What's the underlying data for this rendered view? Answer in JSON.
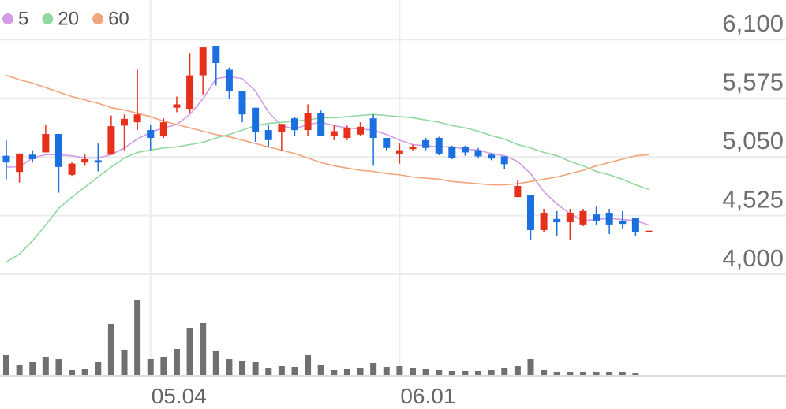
{
  "chart_data": {
    "type": "candlestick",
    "categories": [
      null,
      null,
      null,
      null,
      null,
      null,
      null,
      null,
      null,
      null,
      null,
      "05.04",
      null,
      null,
      null,
      null,
      null,
      null,
      null,
      null,
      null,
      null,
      null,
      null,
      null,
      null,
      null,
      null,
      null,
      null,
      "06.01",
      null,
      null,
      null,
      null,
      null,
      null,
      null,
      null,
      null,
      null,
      null,
      null,
      null,
      null,
      null,
      null,
      null,
      null,
      null
    ],
    "open": [
      5060,
      4915,
      5070,
      5090,
      5255,
      4890,
      5000,
      5020,
      5070,
      5330,
      5360,
      5290,
      5240,
      5490,
      5480,
      5780,
      6045,
      5830,
      5640,
      5490,
      5290,
      5270,
      5395,
      5290,
      5445,
      5235,
      5220,
      5250,
      5395,
      5220,
      5080,
      5120,
      5200,
      5220,
      5140,
      5140,
      5110,
      5070,
      5055,
      4690,
      4705,
      4395,
      4495,
      4465,
      4445,
      4535,
      4550,
      4480,
      4505,
      4385
    ],
    "high": [
      5200,
      5080,
      5110,
      5340,
      5255,
      5000,
      5070,
      5170,
      5420,
      5430,
      5830,
      5340,
      5395,
      5590,
      5980,
      6030,
      6045,
      5850,
      5640,
      5490,
      5340,
      5345,
      5410,
      5520,
      5465,
      5340,
      5330,
      5360,
      5430,
      5220,
      5170,
      5160,
      5220,
      5230,
      5150,
      5150,
      5130,
      5085,
      5055,
      4845,
      4705,
      4585,
      4565,
      4585,
      4585,
      4605,
      4585,
      4565,
      4505,
      4390
    ],
    "low": [
      4850,
      4820,
      5000,
      5090,
      4730,
      4880,
      4970,
      4920,
      5070,
      5110,
      5290,
      5110,
      5220,
      5450,
      5445,
      5610,
      5690,
      5570,
      5360,
      5185,
      5140,
      5100,
      5240,
      5240,
      5240,
      5200,
      5200,
      5240,
      4970,
      5110,
      4990,
      5100,
      5110,
      5065,
      5030,
      5060,
      5040,
      5020,
      4945,
      4690,
      4305,
      4375,
      4340,
      4305,
      4430,
      4445,
      4360,
      4410,
      4340,
      4385
    ],
    "close": [
      5000,
      5080,
      5030,
      5255,
      4960,
      4990,
      5030,
      5000,
      5325,
      5390,
      5430,
      5220,
      5360,
      5520,
      5780,
      6030,
      5890,
      5640,
      5430,
      5270,
      5200,
      5345,
      5290,
      5445,
      5240,
      5280,
      5310,
      5320,
      5220,
      5130,
      5110,
      5140,
      5130,
      5080,
      5040,
      5090,
      5055,
      5035,
      4985,
      4790,
      4395,
      4550,
      4465,
      4550,
      4565,
      4480,
      4445,
      4450,
      4380,
      4390
    ],
    "up_color": "#e5311b",
    "down_color": "#1b70e0",
    "series": [
      {
        "name": "5",
        "color": "#d49be6",
        "values": [
          4960,
          4960,
          5040,
          5070,
          5070,
          5060,
          5040,
          5040,
          5070,
          5130,
          5210,
          5270,
          5310,
          5340,
          5430,
          5570,
          5750,
          5770,
          5750,
          5640,
          5450,
          5330,
          5300,
          5340,
          5360,
          5330,
          5310,
          5300,
          5290,
          5250,
          5200,
          5160,
          5150,
          5140,
          5140,
          5120,
          5110,
          5080,
          5060,
          5010,
          4900,
          4740,
          4630,
          4540,
          4480,
          4490,
          4500,
          4490,
          4480,
          4440
        ]
      },
      {
        "name": "20",
        "color": "#8fd8a0",
        "values": [
          4110,
          4180,
          4300,
          4440,
          4590,
          4690,
          4780,
          4870,
          4960,
          5040,
          5090,
          5110,
          5130,
          5140,
          5160,
          5180,
          5220,
          5250,
          5290,
          5330,
          5350,
          5360,
          5370,
          5380,
          5400,
          5400,
          5410,
          5420,
          5430,
          5420,
          5410,
          5400,
          5380,
          5360,
          5330,
          5310,
          5280,
          5240,
          5210,
          5160,
          5130,
          5090,
          5060,
          5010,
          4970,
          4920,
          4890,
          4850,
          4800,
          4760
        ]
      },
      {
        "name": "60",
        "color": "#f1a57d",
        "values": [
          5780,
          5740,
          5710,
          5670,
          5630,
          5590,
          5560,
          5530,
          5490,
          5470,
          5440,
          5410,
          5370,
          5340,
          5310,
          5280,
          5250,
          5230,
          5200,
          5170,
          5140,
          5110,
          5080,
          5040,
          5000,
          4970,
          4950,
          4930,
          4920,
          4900,
          4890,
          4870,
          4860,
          4850,
          4830,
          4820,
          4810,
          4800,
          4800,
          4810,
          4830,
          4850,
          4870,
          4900,
          4930,
          4970,
          5000,
          5030,
          5060,
          5070
        ]
      }
    ],
    "volume": [
      25,
      13,
      17,
      23,
      20,
      6,
      8,
      17,
      65,
      32,
      95,
      20,
      23,
      33,
      60,
      66,
      30,
      20,
      18,
      17,
      9,
      12,
      10,
      26,
      13,
      6,
      8,
      9,
      16,
      10,
      11,
      9,
      8,
      6,
      5,
      5,
      5,
      6,
      9,
      12,
      20,
      6,
      4,
      4,
      4,
      4,
      4,
      4,
      3,
      null
    ],
    "volume_color": "#707070",
    "ylim": [
      4000,
      6440
    ],
    "yticks": [
      {
        "value": 4000,
        "label": "4,000"
      },
      {
        "value": 4525,
        "label": "4,525"
      },
      {
        "value": 5050,
        "label": "5,050"
      },
      {
        "value": 5575,
        "label": "5,575"
      },
      {
        "value": 6100,
        "label": "6,100"
      }
    ],
    "grid": true
  }
}
